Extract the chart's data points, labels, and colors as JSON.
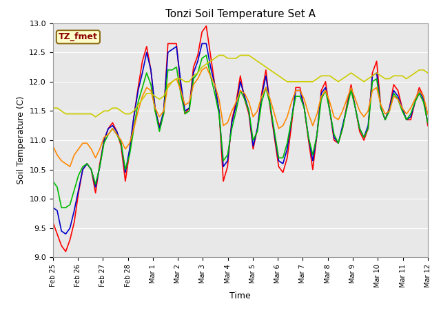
{
  "title": "Tonzi Soil Temperature Set A",
  "xlabel": "Time",
  "ylabel": "Soil Temperature (C)",
  "ylim": [
    9.0,
    13.0
  ],
  "annotation": "TZ_fmet",
  "annotation_color": "#8B0000",
  "annotation_bg": "#FFFFCC",
  "annotation_border": "#8B6914",
  "colors": {
    "2cm": "#FF0000",
    "4cm": "#0000CC",
    "8cm": "#00BB00",
    "16cm": "#FF8800",
    "32cm": "#CCCC00"
  },
  "x_tick_labels": [
    "Feb 25",
    "Feb 26",
    "Feb 27",
    "Feb 28",
    "Mar 1",
    "Mar 2",
    "Mar 3",
    "Mar 4",
    "Mar 5",
    "Mar 6",
    "Mar 7",
    "Mar 8",
    "Mar 9",
    "Mar 10",
    "Mar 11",
    "Mar 12"
  ],
  "background_color": "#E8E8E8",
  "grid_color": "#FFFFFF",
  "figsize": [
    6.4,
    4.8
  ],
  "dpi": 100,
  "series_2cm": [
    9.6,
    9.4,
    9.2,
    9.1,
    9.3,
    9.6,
    10.1,
    10.5,
    10.6,
    10.5,
    10.1,
    10.6,
    11.0,
    11.2,
    11.3,
    11.15,
    10.9,
    10.3,
    10.8,
    11.4,
    11.9,
    12.35,
    12.6,
    12.2,
    11.5,
    11.25,
    11.45,
    12.65,
    12.65,
    12.65,
    11.9,
    11.45,
    11.55,
    12.25,
    12.45,
    12.85,
    12.95,
    12.45,
    11.95,
    11.5,
    10.3,
    10.55,
    11.35,
    11.65,
    12.1,
    11.7,
    11.45,
    10.85,
    11.2,
    11.8,
    12.2,
    11.55,
    11.05,
    10.55,
    10.45,
    10.7,
    11.25,
    11.9,
    11.9,
    11.55,
    11.0,
    10.5,
    11.1,
    11.85,
    12.0,
    11.5,
    11.0,
    10.95,
    11.2,
    11.6,
    11.95,
    11.55,
    11.15,
    11.0,
    11.2,
    12.15,
    12.35,
    11.55,
    11.35,
    11.55,
    11.95,
    11.85,
    11.55,
    11.35,
    11.35,
    11.65,
    11.9,
    11.75,
    11.25
  ],
  "series_4cm": [
    9.85,
    9.8,
    9.45,
    9.4,
    9.5,
    9.8,
    10.15,
    10.5,
    10.6,
    10.5,
    10.2,
    10.55,
    11.0,
    11.2,
    11.25,
    11.15,
    10.95,
    10.45,
    10.85,
    11.4,
    11.85,
    12.15,
    12.5,
    12.2,
    11.55,
    11.2,
    11.5,
    12.5,
    12.55,
    12.6,
    12.0,
    11.5,
    11.55,
    12.15,
    12.35,
    12.65,
    12.65,
    12.25,
    11.95,
    11.5,
    10.55,
    10.65,
    11.3,
    11.6,
    12.0,
    11.75,
    11.5,
    10.9,
    11.2,
    11.75,
    12.1,
    11.6,
    11.1,
    10.65,
    10.6,
    10.85,
    11.35,
    11.85,
    11.85,
    11.55,
    11.05,
    10.65,
    11.1,
    11.8,
    11.9,
    11.5,
    11.05,
    10.95,
    11.25,
    11.55,
    11.9,
    11.55,
    11.2,
    11.05,
    11.25,
    12.1,
    12.15,
    11.55,
    11.35,
    11.55,
    11.85,
    11.75,
    11.55,
    11.35,
    11.4,
    11.65,
    11.85,
    11.7,
    11.3
  ],
  "series_8cm": [
    10.3,
    10.2,
    9.85,
    9.85,
    9.9,
    10.15,
    10.4,
    10.55,
    10.6,
    10.5,
    10.25,
    10.55,
    10.95,
    11.1,
    11.2,
    11.1,
    10.95,
    10.5,
    10.75,
    11.2,
    11.65,
    11.9,
    12.15,
    11.95,
    11.5,
    11.15,
    11.45,
    12.2,
    12.2,
    12.25,
    11.8,
    11.45,
    11.5,
    12.05,
    12.15,
    12.4,
    12.45,
    12.1,
    11.8,
    11.45,
    10.65,
    10.75,
    11.2,
    11.5,
    11.85,
    11.7,
    11.5,
    11.0,
    11.15,
    11.65,
    11.9,
    11.6,
    11.15,
    10.7,
    10.7,
    10.95,
    11.35,
    11.75,
    11.75,
    11.55,
    11.05,
    10.75,
    11.1,
    11.7,
    11.85,
    11.5,
    11.1,
    10.95,
    11.2,
    11.55,
    11.85,
    11.55,
    11.2,
    11.05,
    11.2,
    12.0,
    12.05,
    11.55,
    11.35,
    11.5,
    11.8,
    11.7,
    11.5,
    11.35,
    11.45,
    11.65,
    11.8,
    11.65,
    11.3
  ],
  "series_16cm": [
    10.9,
    10.75,
    10.65,
    10.6,
    10.55,
    10.75,
    10.85,
    10.95,
    10.95,
    10.85,
    10.7,
    10.85,
    11.05,
    11.1,
    11.2,
    11.1,
    11.0,
    10.85,
    10.95,
    11.2,
    11.5,
    11.75,
    11.9,
    11.85,
    11.55,
    11.4,
    11.5,
    11.95,
    12.0,
    12.05,
    11.85,
    11.6,
    11.65,
    11.95,
    12.05,
    12.2,
    12.25,
    12.1,
    11.95,
    11.7,
    11.25,
    11.3,
    11.5,
    11.65,
    11.85,
    11.8,
    11.65,
    11.4,
    11.5,
    11.75,
    11.9,
    11.7,
    11.45,
    11.2,
    11.25,
    11.4,
    11.65,
    11.85,
    11.85,
    11.7,
    11.45,
    11.25,
    11.45,
    11.75,
    11.85,
    11.65,
    11.4,
    11.35,
    11.5,
    11.7,
    11.9,
    11.7,
    11.5,
    11.4,
    11.5,
    11.85,
    11.9,
    11.6,
    11.45,
    11.5,
    11.75,
    11.7,
    11.55,
    11.45,
    11.55,
    11.7,
    11.85,
    11.75,
    11.45
  ],
  "series_32cm": [
    11.55,
    11.55,
    11.5,
    11.45,
    11.45,
    11.45,
    11.45,
    11.45,
    11.45,
    11.45,
    11.4,
    11.45,
    11.5,
    11.5,
    11.55,
    11.55,
    11.5,
    11.45,
    11.45,
    11.5,
    11.6,
    11.7,
    11.8,
    11.8,
    11.75,
    11.7,
    11.75,
    11.9,
    12.0,
    12.05,
    12.05,
    12.0,
    12.0,
    12.1,
    12.15,
    12.25,
    12.3,
    12.35,
    12.4,
    12.45,
    12.45,
    12.4,
    12.4,
    12.4,
    12.45,
    12.45,
    12.45,
    12.4,
    12.35,
    12.3,
    12.25,
    12.2,
    12.15,
    12.1,
    12.05,
    12.0,
    12.0,
    12.0,
    12.0,
    12.0,
    12.0,
    12.0,
    12.05,
    12.1,
    12.1,
    12.1,
    12.05,
    12.0,
    12.05,
    12.1,
    12.15,
    12.1,
    12.05,
    12.0,
    12.05,
    12.1,
    12.15,
    12.1,
    12.05,
    12.05,
    12.1,
    12.1,
    12.1,
    12.05,
    12.1,
    12.15,
    12.2,
    12.2,
    12.15
  ]
}
